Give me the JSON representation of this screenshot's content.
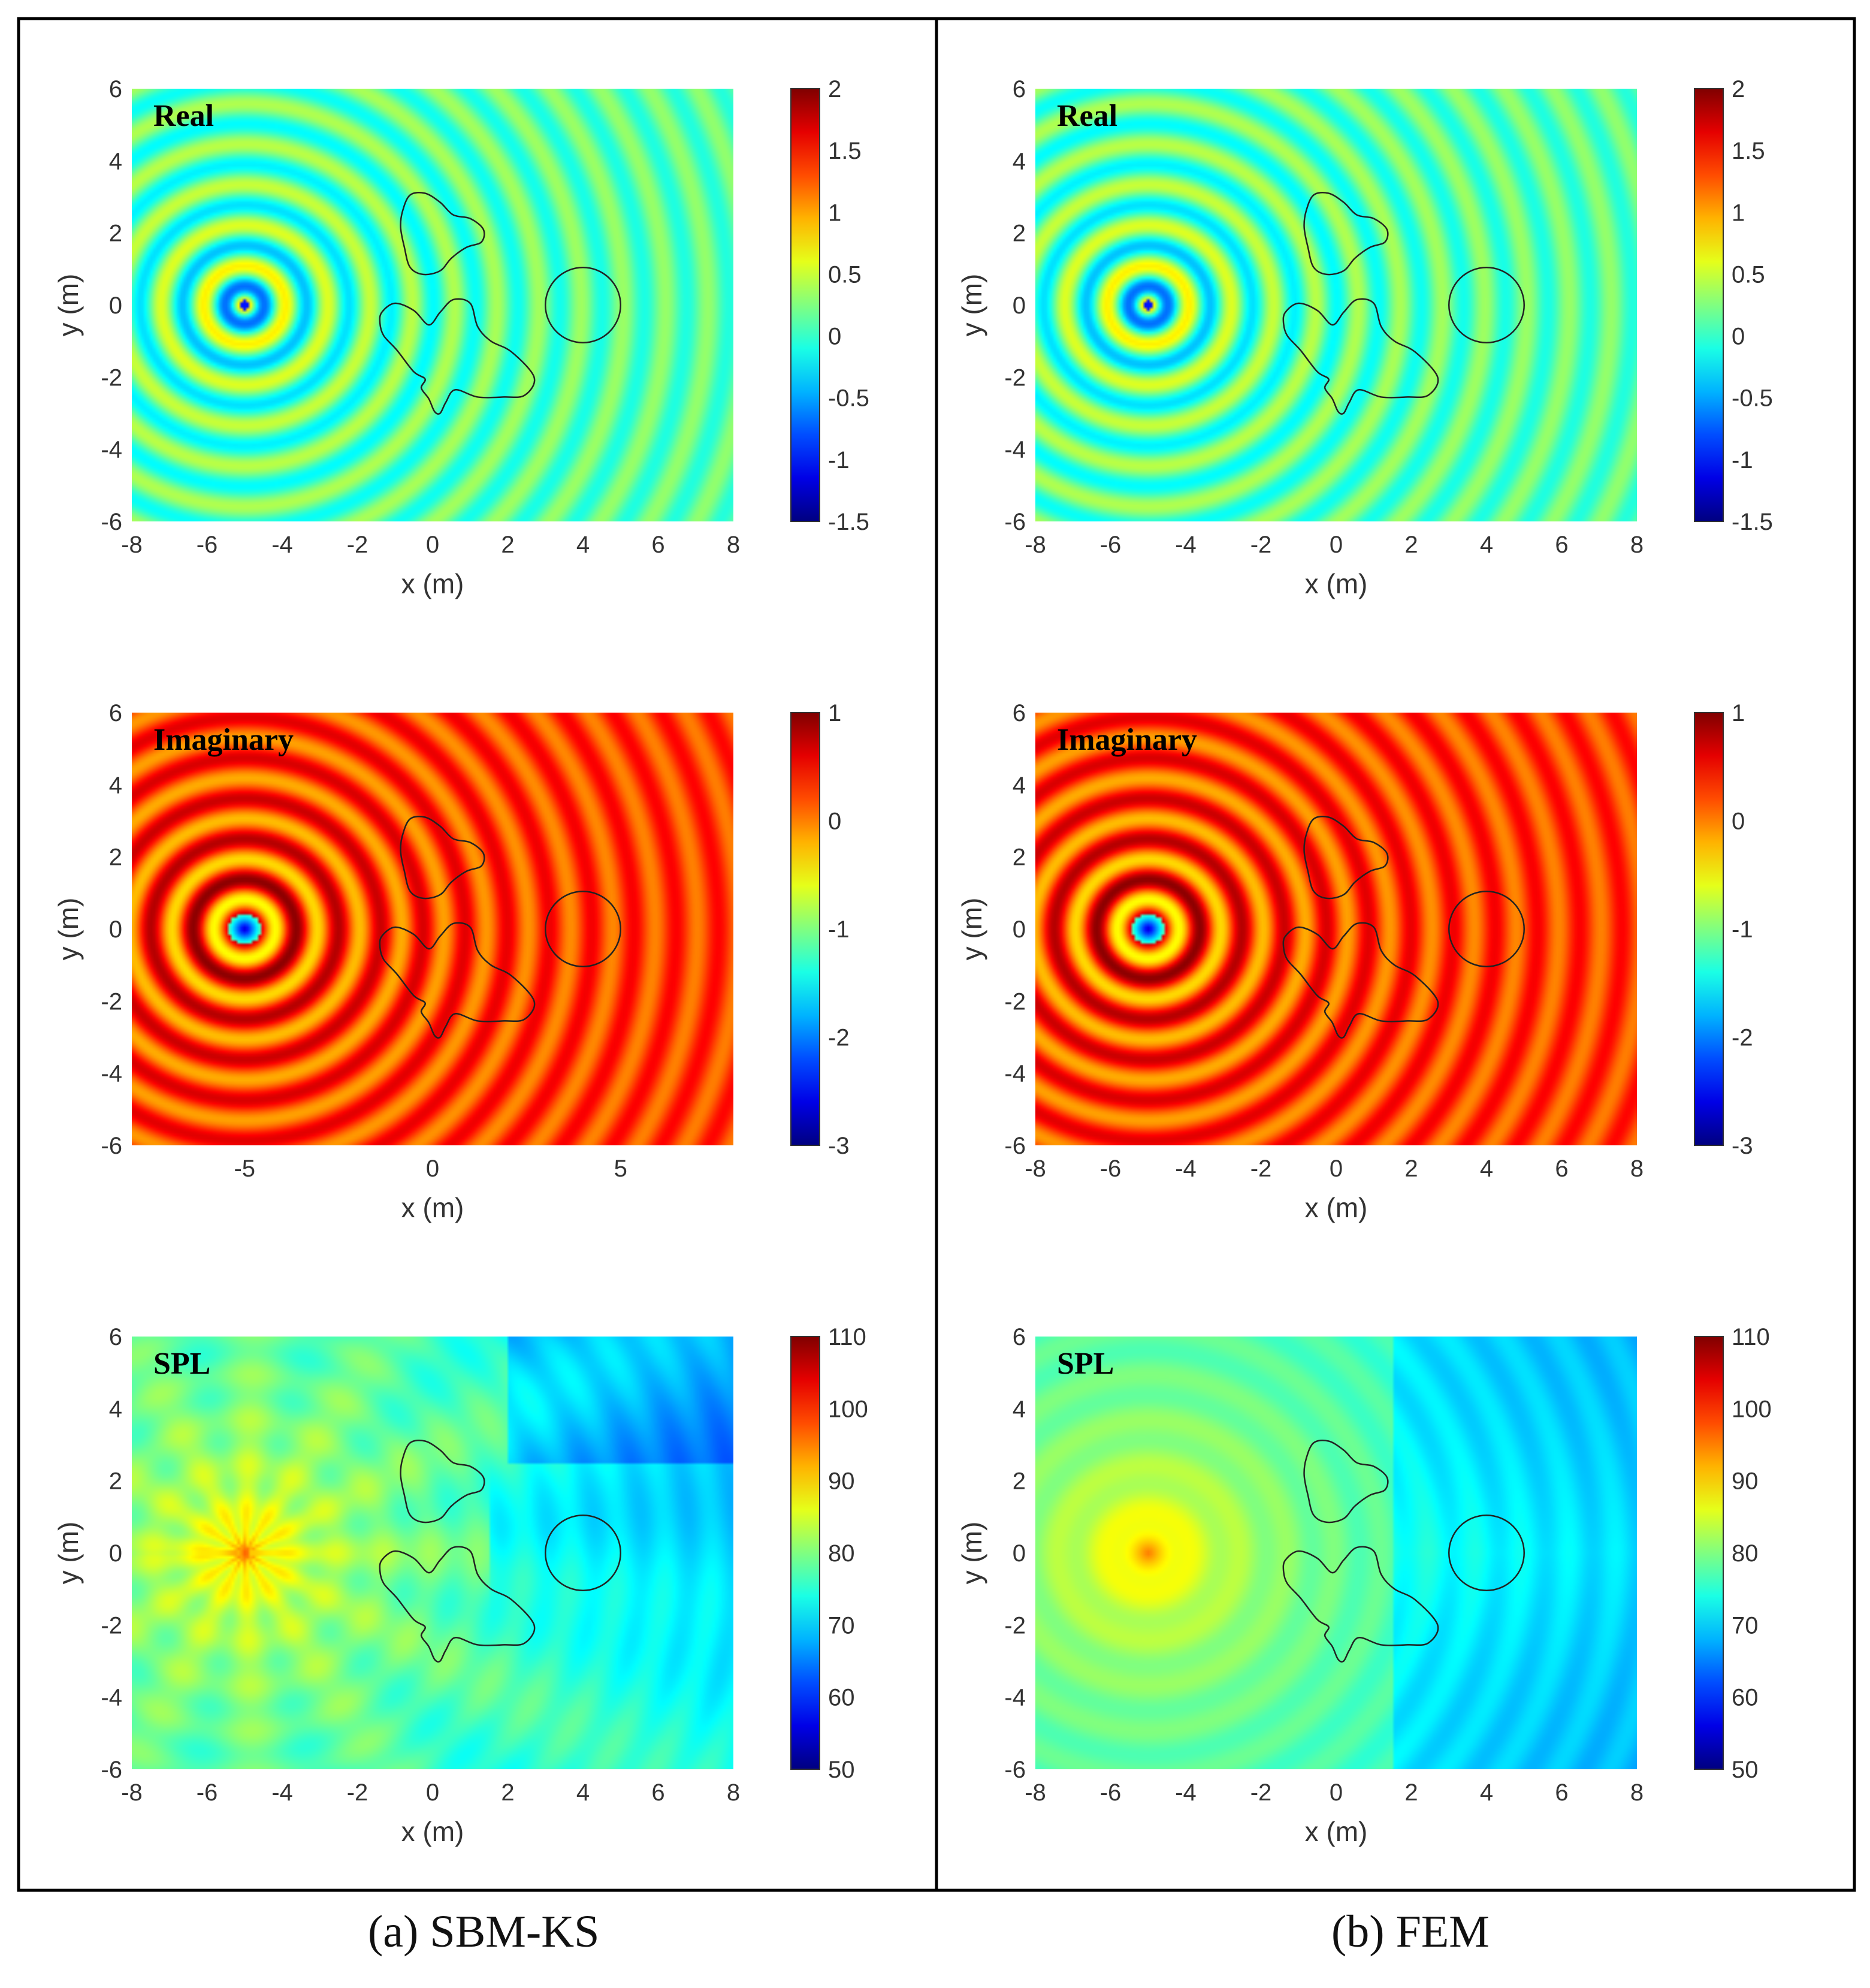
{
  "captions": {
    "left": "(a) SBM-KS",
    "right": "(b) FEM"
  },
  "chart_data": [
    {
      "type": "heatmap",
      "method": "SBM-KS",
      "quantity": "Real",
      "title": "Real",
      "xlabel": "x (m)",
      "ylabel": "y (m)",
      "xlim": [
        -8,
        8
      ],
      "ylim": [
        -6,
        6
      ],
      "xticks": [
        "-8",
        "-6",
        "-4",
        "-2",
        "0",
        "2",
        "4",
        "6",
        "8"
      ],
      "yticks": [
        "-6",
        "-4",
        "-2",
        "0",
        "2",
        "4",
        "6"
      ],
      "colorbar": {
        "range": [
          -1.5,
          2
        ],
        "ticks": [
          "-1.5",
          "-1",
          "-0.5",
          "0",
          "0.5",
          "1",
          "1.5",
          "2"
        ]
      },
      "source": [
        -5,
        0
      ],
      "colormap": "jet",
      "grid": false
    },
    {
      "type": "heatmap",
      "method": "SBM-KS",
      "quantity": "Imaginary",
      "title": "Imaginary",
      "xlabel": "x (m)",
      "ylabel": "y (m)",
      "xlim": [
        -8,
        8
      ],
      "ylim": [
        -6,
        6
      ],
      "xticks": [
        "-5",
        "0",
        "5"
      ],
      "yticks": [
        "-6",
        "-4",
        "-2",
        "0",
        "2",
        "4",
        "6"
      ],
      "colorbar": {
        "range": [
          -3,
          1
        ],
        "ticks": [
          "-3",
          "-2",
          "-1",
          "0",
          "1"
        ]
      },
      "source": [
        -5,
        0
      ],
      "colormap": "jet",
      "grid": false
    },
    {
      "type": "heatmap",
      "method": "SBM-KS",
      "quantity": "SPL",
      "title": "SPL",
      "xlabel": "x (m)",
      "ylabel": "y (m)",
      "xlim": [
        -8,
        8
      ],
      "ylim": [
        -6,
        6
      ],
      "xticks": [
        "-8",
        "-6",
        "-4",
        "-2",
        "0",
        "2",
        "4",
        "6",
        "8"
      ],
      "yticks": [
        "-6",
        "-4",
        "-2",
        "0",
        "2",
        "4",
        "6"
      ],
      "colorbar": {
        "range": [
          50,
          110
        ],
        "ticks": [
          "50",
          "60",
          "70",
          "80",
          "90",
          "100",
          "110"
        ]
      },
      "source": [
        -5,
        0
      ],
      "colormap": "jet",
      "grid": false
    },
    {
      "type": "heatmap",
      "method": "FEM",
      "quantity": "Real",
      "title": "Real",
      "xlabel": "x (m)",
      "ylabel": "y (m)",
      "xlim": [
        -8,
        8
      ],
      "ylim": [
        -6,
        6
      ],
      "xticks": [
        "-8",
        "-6",
        "-4",
        "-2",
        "0",
        "2",
        "4",
        "6",
        "8"
      ],
      "yticks": [
        "-6",
        "-4",
        "-2",
        "0",
        "2",
        "4",
        "6"
      ],
      "colorbar": {
        "range": [
          -1.5,
          2
        ],
        "ticks": [
          "-1.5",
          "-1",
          "-0.5",
          "0",
          "0.5",
          "1",
          "1.5",
          "2"
        ]
      },
      "source": [
        -5,
        0
      ],
      "colormap": "jet",
      "grid": false
    },
    {
      "type": "heatmap",
      "method": "FEM",
      "quantity": "Imaginary",
      "title": "Imaginary",
      "xlabel": "x (m)",
      "ylabel": "y (m)",
      "xlim": [
        -8,
        8
      ],
      "ylim": [
        -6,
        6
      ],
      "xticks": [
        "-8",
        "-6",
        "-4",
        "-2",
        "0",
        "2",
        "4",
        "6",
        "8"
      ],
      "yticks": [
        "-6",
        "-4",
        "-2",
        "0",
        "2",
        "4",
        "6"
      ],
      "colorbar": {
        "range": [
          -3,
          1
        ],
        "ticks": [
          "-3",
          "-2",
          "-1",
          "0",
          "1"
        ]
      },
      "source": [
        -5,
        0
      ],
      "colormap": "jet",
      "grid": false
    },
    {
      "type": "heatmap",
      "method": "FEM",
      "quantity": "SPL",
      "title": "SPL",
      "xlabel": "x (m)",
      "ylabel": "y (m)",
      "xlim": [
        -8,
        8
      ],
      "ylim": [
        -6,
        6
      ],
      "xticks": [
        "-8",
        "-6",
        "-4",
        "-2",
        "0",
        "2",
        "4",
        "6",
        "8"
      ],
      "yticks": [
        "-6",
        "-4",
        "-2",
        "0",
        "2",
        "4",
        "6"
      ],
      "colorbar": {
        "range": [
          50,
          110
        ],
        "ticks": [
          "50",
          "60",
          "70",
          "80",
          "90",
          "100",
          "110"
        ]
      },
      "source": [
        -5,
        0
      ],
      "colormap": "jet",
      "grid": false
    }
  ],
  "obstacles": {
    "circle": {
      "center": [
        4,
        0
      ],
      "radius": 1
    },
    "upper_blob": [
      [
        -0.8,
        2.6
      ],
      [
        -0.6,
        3.05
      ],
      [
        -0.2,
        3.1
      ],
      [
        0.2,
        2.85
      ],
      [
        0.55,
        2.5
      ],
      [
        1,
        2.4
      ],
      [
        1.35,
        2.1
      ],
      [
        1.3,
        1.75
      ],
      [
        0.9,
        1.6
      ],
      [
        0.5,
        1.3
      ],
      [
        0.2,
        0.95
      ],
      [
        -0.25,
        0.85
      ],
      [
        -0.6,
        1.05
      ],
      [
        -0.75,
        1.6
      ],
      [
        -0.85,
        2.15
      ]
    ],
    "lower_blob": [
      [
        -1.4,
        -0.5
      ],
      [
        -1.35,
        -0.2
      ],
      [
        -1,
        0.05
      ],
      [
        -0.5,
        -0.15
      ],
      [
        -0.1,
        -0.55
      ],
      [
        0.2,
        -0.2
      ],
      [
        0.55,
        0.15
      ],
      [
        1,
        0.05
      ],
      [
        1.2,
        -0.6
      ],
      [
        1.55,
        -1
      ],
      [
        2.1,
        -1.3
      ],
      [
        2.7,
        -2
      ],
      [
        2.45,
        -2.5
      ],
      [
        1.9,
        -2.55
      ],
      [
        1.2,
        -2.55
      ],
      [
        0.6,
        -2.35
      ],
      [
        0.35,
        -2.7
      ],
      [
        0.2,
        -3
      ],
      [
        0.05,
        -2.95
      ],
      [
        -0.1,
        -2.6
      ],
      [
        -0.3,
        -2.3
      ],
      [
        -0.2,
        -2.05
      ],
      [
        -0.5,
        -1.85
      ],
      [
        -0.95,
        -1.25
      ],
      [
        -1.3,
        -0.85
      ]
    ]
  }
}
